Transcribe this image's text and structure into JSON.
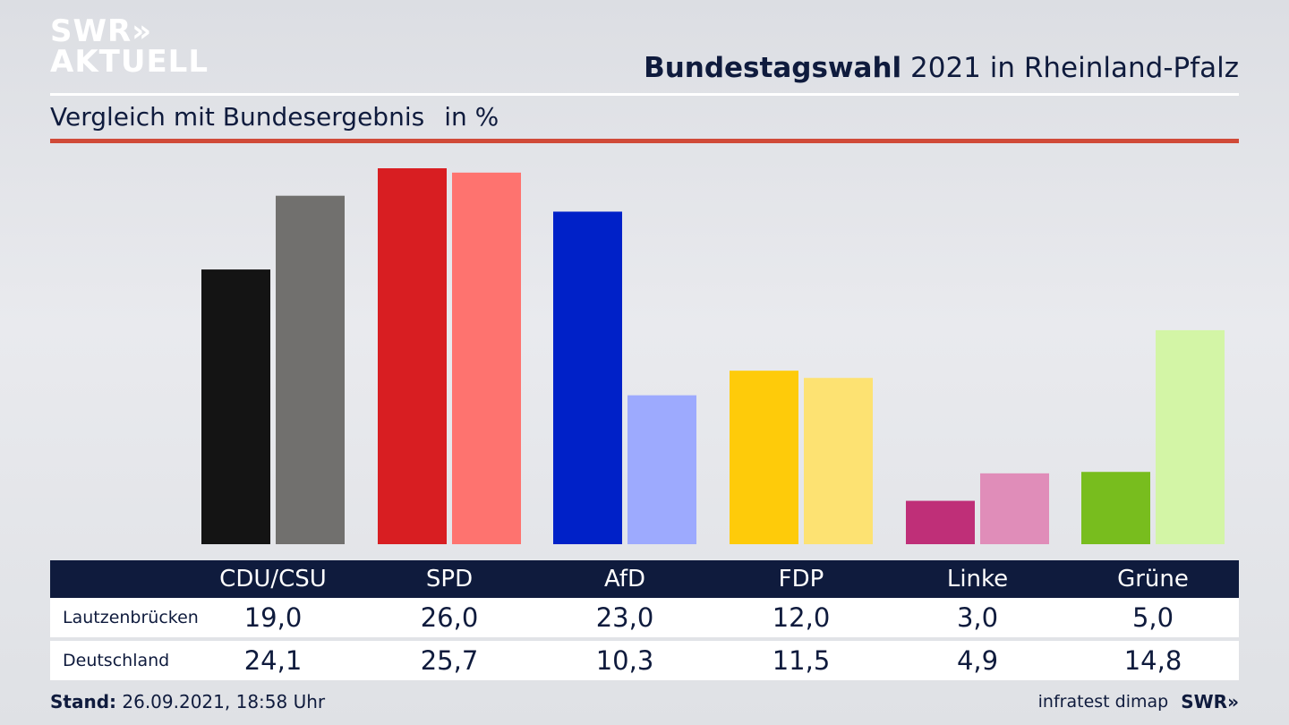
{
  "logo": {
    "line1": "SWR»",
    "line2": "AKTUELL"
  },
  "header": {
    "title_bold": "Bundestagswahl",
    "title_rest": " 2021 in Rheinland-Pfalz",
    "subtitle": "Vergleich mit Bundesergebnis",
    "unit": "in %"
  },
  "colors": {
    "cdu": [
      "#141414",
      "#71706e"
    ],
    "spd": [
      "#d81e22",
      "#fe736f"
    ],
    "afd": [
      "#0021c8",
      "#9daafe"
    ],
    "fdp": [
      "#fecb0a",
      "#fde272"
    ],
    "linke": [
      "#bf2f78",
      "#e08db9"
    ],
    "gruene": [
      "#78bd1e",
      "#d3f5a6"
    ]
  },
  "chart_data": {
    "type": "bar",
    "categories": [
      "CDU/CSU",
      "SPD",
      "AfD",
      "FDP",
      "Linke",
      "Grüne"
    ],
    "series": [
      {
        "name": "Lautzenbrücken",
        "values": [
          19.0,
          26.0,
          23.0,
          12.0,
          3.0,
          5.0
        ]
      },
      {
        "name": "Deutschland",
        "values": [
          24.1,
          25.7,
          10.3,
          11.5,
          4.9,
          14.8
        ]
      }
    ],
    "title": "Bundestagswahl 2021 in Rheinland-Pfalz",
    "subtitle": "Vergleich mit Bundesergebnis",
    "ylabel": "in %",
    "ylim": [
      0,
      26.0
    ],
    "grid": false
  },
  "table": {
    "row_labels": [
      "Lautzenbrücken",
      "Deutschland"
    ],
    "row1_values": [
      "19,0",
      "26,0",
      "23,0",
      "12,0",
      "3,0",
      "5,0"
    ],
    "row2_values": [
      "24,1",
      "25,7",
      "10,3",
      "11,5",
      "4,9",
      "14,8"
    ]
  },
  "footer": {
    "stand_label": "Stand:",
    "stand_value": " 26.09.2021, 18:58 Uhr",
    "source": "infratest dimap",
    "brand": "SWR»"
  }
}
